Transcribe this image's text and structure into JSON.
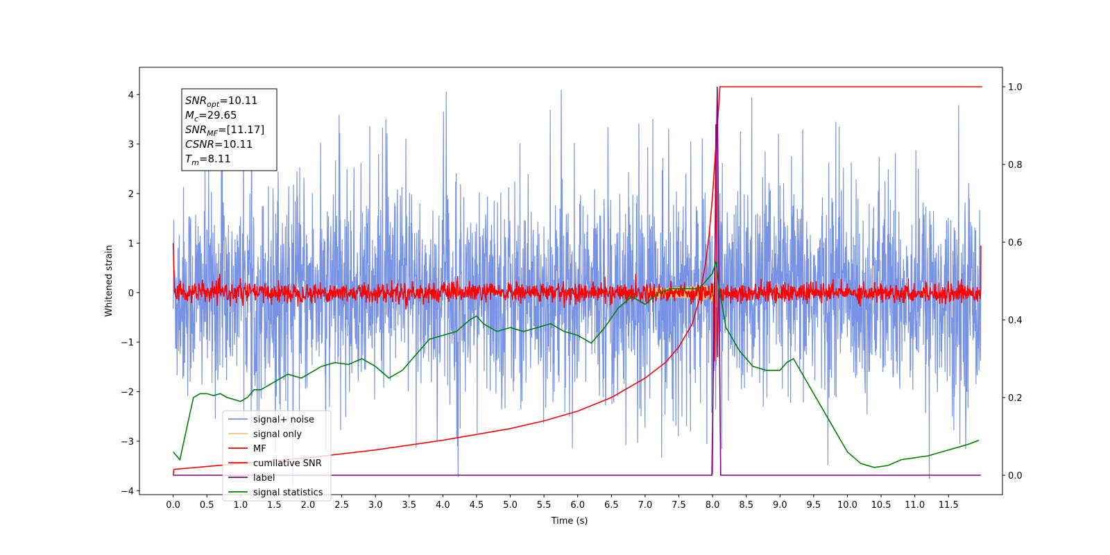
{
  "chart_data": {
    "type": "line",
    "xlabel": "Time (s)",
    "ylabel": "Whitened strain",
    "xlim": [
      -0.5,
      12.3
    ],
    "ylim": [
      -4.08,
      4.55
    ],
    "ylim_right": [
      -0.05,
      1.05
    ],
    "x_ticks": [
      "0.0",
      "0.5",
      "1.0",
      "1.5",
      "2.0",
      "2.5",
      "3.0",
      "3.5",
      "4.0",
      "4.5",
      "5.0",
      "5.5",
      "6.0",
      "6.5",
      "7.0",
      "7.5",
      "8.0",
      "8.5",
      "9.0",
      "9.5",
      "10.0",
      "10.5",
      "11.0",
      "11.5"
    ],
    "y_ticks_left": [
      "4",
      "3",
      "2",
      "1",
      "0",
      "−1",
      "−2",
      "−3",
      "−4"
    ],
    "y_ticks_right": [
      "1.0",
      "0.8",
      "0.6",
      "0.4",
      "0.2",
      "0.0"
    ],
    "grid": false,
    "legend_placement": "lower-left",
    "annotation": [
      {
        "sym": "SNR",
        "sub": "opt",
        "val": "=10.11"
      },
      {
        "sym": "M",
        "sub": "c",
        "val": "=29.65"
      },
      {
        "sym": "SNR",
        "sub": "MF",
        "val": "=[11.17]"
      },
      {
        "sym": "CSNR",
        "sub": "",
        "val": "=10.11"
      },
      {
        "sym": "T",
        "sub": "m",
        "val": "=8.11"
      }
    ],
    "series": [
      {
        "name": "signal+ noise",
        "color": "#7893e6",
        "axis": "left",
        "kind": "noise",
        "note": "whitened noise, std ~1, spikes up to ~4.2"
      },
      {
        "name": "signal only",
        "color": "#f5c37a",
        "axis": "left",
        "kind": "chirp",
        "peak_time": 8.05,
        "peak_amplitude": 1.0
      },
      {
        "name": "MF",
        "color": "#ff0000",
        "axis": "left",
        "kind": "mf",
        "noise_level": 0.1,
        "peak_time": 8.05,
        "peak_value": 3.5
      },
      {
        "name": "cumilative SNR",
        "color": "#ff0000",
        "axis": "right",
        "x": [
          0.0,
          0.01,
          1.0,
          2.0,
          3.0,
          4.0,
          5.0,
          5.5,
          6.0,
          6.5,
          7.0,
          7.3,
          7.5,
          7.7,
          7.8,
          7.9,
          7.95,
          8.0,
          8.05,
          8.1,
          8.11,
          12.0
        ],
        "y": [
          0.0,
          0.015,
          0.03,
          0.045,
          0.065,
          0.09,
          0.12,
          0.14,
          0.165,
          0.2,
          0.25,
          0.29,
          0.33,
          0.39,
          0.45,
          0.55,
          0.62,
          0.72,
          0.85,
          0.97,
          1.0,
          1.0
        ]
      },
      {
        "name": "label",
        "color": "#800080",
        "axis": "right",
        "x": [
          0.0,
          7.99,
          8.07,
          8.12,
          11.98
        ],
        "y": [
          0.0,
          0.0,
          1.0,
          0.0,
          0.0
        ]
      },
      {
        "name": "signal statistics",
        "color": "#008000",
        "axis": "right",
        "x": [
          0.0,
          0.1,
          0.2,
          0.3,
          0.4,
          0.5,
          0.6,
          0.7,
          0.8,
          0.9,
          1.0,
          1.1,
          1.2,
          1.3,
          1.4,
          1.5,
          1.6,
          1.7,
          1.8,
          1.9,
          2.0,
          2.2,
          2.4,
          2.6,
          2.8,
          3.0,
          3.2,
          3.4,
          3.6,
          3.8,
          4.0,
          4.2,
          4.4,
          4.5,
          4.6,
          4.8,
          5.0,
          5.2,
          5.4,
          5.6,
          5.8,
          6.0,
          6.2,
          6.4,
          6.6,
          6.8,
          7.0,
          7.2,
          7.4,
          7.6,
          7.8,
          7.9,
          8.0,
          8.05,
          8.1,
          8.2,
          8.4,
          8.6,
          8.8,
          9.0,
          9.1,
          9.2,
          9.4,
          9.6,
          9.8,
          10.0,
          10.2,
          10.4,
          10.6,
          10.8,
          11.0,
          11.2,
          11.4,
          11.6,
          11.8,
          11.95
        ],
        "y": [
          0.06,
          0.04,
          0.12,
          0.2,
          0.21,
          0.21,
          0.205,
          0.21,
          0.2,
          0.195,
          0.19,
          0.2,
          0.22,
          0.22,
          0.23,
          0.24,
          0.25,
          0.26,
          0.255,
          0.25,
          0.26,
          0.28,
          0.29,
          0.285,
          0.3,
          0.28,
          0.25,
          0.27,
          0.31,
          0.35,
          0.36,
          0.37,
          0.4,
          0.41,
          0.39,
          0.37,
          0.38,
          0.37,
          0.38,
          0.39,
          0.37,
          0.36,
          0.34,
          0.38,
          0.43,
          0.46,
          0.44,
          0.47,
          0.48,
          0.48,
          0.48,
          0.5,
          0.52,
          0.55,
          0.48,
          0.38,
          0.32,
          0.28,
          0.27,
          0.27,
          0.29,
          0.3,
          0.24,
          0.18,
          0.12,
          0.06,
          0.03,
          0.02,
          0.025,
          0.04,
          0.045,
          0.05,
          0.06,
          0.07,
          0.08,
          0.09
        ]
      }
    ]
  }
}
